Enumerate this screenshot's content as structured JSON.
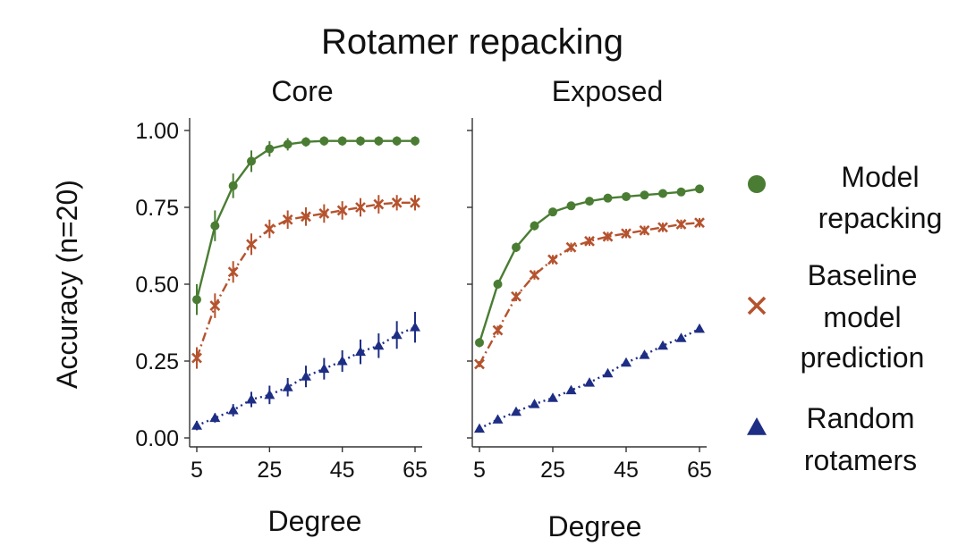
{
  "chart_data": {
    "type": "line",
    "title": "Rotamer repacking",
    "ylabel": "Accuracy (n=20)",
    "xlabel": "Degree",
    "ylim": [
      0,
      1
    ],
    "xlim": [
      5,
      65
    ],
    "yticks": [
      "0.00",
      "0.25",
      "0.50",
      "0.75",
      "1.00"
    ],
    "xticks": [
      "5",
      "25",
      "45",
      "65"
    ],
    "grid": false,
    "legend_position": "right",
    "x": [
      5,
      10,
      15,
      20,
      25,
      30,
      35,
      40,
      45,
      50,
      55,
      60,
      65
    ],
    "legend": [
      {
        "key": "model",
        "lines": [
          "Model",
          "repacking"
        ],
        "marker": "circle",
        "color": "#4a7d33"
      },
      {
        "key": "baseline",
        "lines": [
          "Baseline",
          "model",
          "prediction"
        ],
        "marker": "cross",
        "color": "#b5532e"
      },
      {
        "key": "random",
        "lines": [
          "Random",
          "rotamers"
        ],
        "marker": "triangle",
        "color": "#1e2e84"
      }
    ],
    "panels": [
      {
        "title": "Core",
        "series": [
          {
            "key": "model",
            "style": "solid",
            "values": [
              0.45,
              0.69,
              0.82,
              0.9,
              0.94,
              0.955,
              0.963,
              0.966,
              0.966,
              0.966,
              0.966,
              0.966,
              0.966
            ],
            "errors": [
              0.05,
              0.05,
              0.04,
              0.035,
              0.025,
              0.02,
              0.015,
              0.015,
              0.015,
              0.015,
              0.015,
              0.015,
              0.015
            ]
          },
          {
            "key": "baseline",
            "style": "dashdot",
            "values": [
              0.26,
              0.43,
              0.54,
              0.63,
              0.68,
              0.71,
              0.72,
              0.73,
              0.74,
              0.75,
              0.76,
              0.765,
              0.765
            ],
            "errors": [
              0.035,
              0.04,
              0.035,
              0.035,
              0.03,
              0.03,
              0.03,
              0.03,
              0.03,
              0.03,
              0.03,
              0.025,
              0.025
            ]
          },
          {
            "key": "random",
            "style": "dotted",
            "values": [
              0.04,
              0.065,
              0.09,
              0.125,
              0.14,
              0.165,
              0.2,
              0.225,
              0.25,
              0.28,
              0.3,
              0.335,
              0.36
            ],
            "errors": [
              0.015,
              0.015,
              0.02,
              0.025,
              0.03,
              0.03,
              0.035,
              0.035,
              0.035,
              0.04,
              0.04,
              0.045,
              0.05
            ]
          }
        ]
      },
      {
        "title": "Exposed",
        "series": [
          {
            "key": "model",
            "style": "solid",
            "values": [
              0.31,
              0.5,
              0.62,
              0.69,
              0.735,
              0.755,
              0.77,
              0.78,
              0.785,
              0.79,
              0.795,
              0.8,
              0.81
            ],
            "errors": [
              0.015,
              0.015,
              0.015,
              0.015,
              0.01,
              0.01,
              0.01,
              0.01,
              0.01,
              0.01,
              0.01,
              0.01,
              0.01
            ]
          },
          {
            "key": "baseline",
            "style": "dashdot",
            "values": [
              0.24,
              0.35,
              0.46,
              0.53,
              0.58,
              0.62,
              0.64,
              0.655,
              0.665,
              0.675,
              0.685,
              0.695,
              0.7
            ],
            "errors": [
              0.01,
              0.015,
              0.015,
              0.015,
              0.015,
              0.015,
              0.015,
              0.015,
              0.015,
              0.015,
              0.015,
              0.015,
              0.015
            ]
          },
          {
            "key": "random",
            "style": "dotted",
            "values": [
              0.03,
              0.06,
              0.085,
              0.11,
              0.13,
              0.155,
              0.18,
              0.21,
              0.245,
              0.27,
              0.3,
              0.325,
              0.355
            ],
            "errors": [
              0.005,
              0.005,
              0.005,
              0.008,
              0.008,
              0.008,
              0.01,
              0.01,
              0.01,
              0.012,
              0.012,
              0.012,
              0.012
            ]
          }
        ]
      }
    ]
  }
}
